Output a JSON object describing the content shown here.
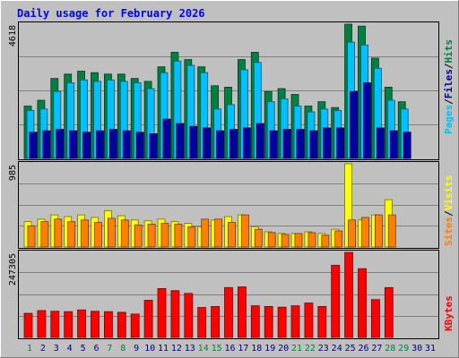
{
  "title": "Daily usage for February 2026",
  "colors": {
    "background": "#c0c0c0",
    "title": "#0000ff",
    "hits": "#008040",
    "files": "#00c0ff",
    "pages": "#0000a0",
    "visits": "#ffff00",
    "sites": "#ff8000",
    "kbytes": "#ff0000",
    "weekend_day": "#008040",
    "weekday": "#000080",
    "grid": "#808080"
  },
  "chart_data": [
    {
      "type": "bar",
      "panel": "hits-files-pages",
      "y_max_label": "4618",
      "ylim": [
        0,
        4618
      ],
      "grid": true,
      "legend": {
        "position": "right",
        "items": [
          {
            "label": "Pages",
            "color": "#00c0ff"
          },
          {
            "label": "/",
            "color": "#000000"
          },
          {
            "label": "Files",
            "color": "#0000a0"
          },
          {
            "label": "/",
            "color": "#000000"
          },
          {
            "label": "Hits",
            "color": "#008040"
          }
        ]
      },
      "categories": [
        "1",
        "2",
        "3",
        "4",
        "5",
        "6",
        "7",
        "8",
        "9",
        "10",
        "11",
        "12",
        "13",
        "14",
        "15",
        "16",
        "17",
        "18",
        "19",
        "20",
        "21",
        "22",
        "23",
        "24",
        "25",
        "26",
        "27",
        "28",
        "29",
        "30",
        "31"
      ],
      "series": [
        {
          "name": "Hits",
          "values": [
            1800,
            2000,
            2750,
            2900,
            3000,
            2950,
            2900,
            2900,
            2750,
            2650,
            3150,
            3650,
            3400,
            3150,
            2500,
            2450,
            3400,
            3650,
            2300,
            2400,
            2200,
            1800,
            1950,
            1750,
            4618,
            4550,
            3450,
            2450,
            1950,
            0,
            0
          ]
        },
        {
          "name": "Files",
          "values": [
            1650,
            1700,
            2300,
            2600,
            2700,
            2650,
            2700,
            2650,
            2600,
            2400,
            2950,
            3350,
            3200,
            2950,
            1700,
            1850,
            3050,
            3300,
            1950,
            2050,
            1800,
            1600,
            1700,
            1650,
            4000,
            3900,
            3100,
            2000,
            1700,
            0,
            0
          ]
        },
        {
          "name": "Pages",
          "values": [
            900,
            950,
            1000,
            950,
            900,
            950,
            1000,
            950,
            900,
            850,
            1350,
            1200,
            1100,
            1050,
            950,
            1000,
            1050,
            1200,
            950,
            1000,
            1000,
            950,
            1050,
            1050,
            2300,
            2600,
            1050,
            950,
            900,
            0,
            0
          ]
        }
      ]
    },
    {
      "type": "bar",
      "panel": "visits-sites",
      "y_max_label": "985",
      "ylim": [
        0,
        985
      ],
      "grid": true,
      "legend": {
        "position": "right",
        "items": [
          {
            "label": "Sites",
            "color": "#ff8000"
          },
          {
            "label": "/",
            "color": "#000000"
          },
          {
            "label": "Visits",
            "color": "#ffff00"
          }
        ]
      },
      "categories": [
        "1",
        "2",
        "3",
        "4",
        "5",
        "6",
        "7",
        "8",
        "9",
        "10",
        "11",
        "12",
        "13",
        "14",
        "15",
        "16",
        "17",
        "18",
        "19",
        "20",
        "21",
        "22",
        "23",
        "24",
        "25",
        "26",
        "27",
        "28",
        "29",
        "30",
        "31"
      ],
      "series": [
        {
          "name": "Visits",
          "values": [
            300,
            330,
            380,
            360,
            380,
            350,
            430,
            370,
            320,
            310,
            330,
            300,
            280,
            240,
            320,
            360,
            380,
            240,
            180,
            160,
            160,
            180,
            160,
            210,
            985,
            320,
            380,
            560,
            0,
            0,
            0
          ]
        },
        {
          "name": "Sites",
          "values": [
            250,
            300,
            330,
            300,
            320,
            290,
            340,
            320,
            260,
            270,
            280,
            270,
            240,
            330,
            330,
            290,
            380,
            210,
            170,
            150,
            160,
            170,
            140,
            190,
            320,
            350,
            380,
            380,
            0,
            0,
            0
          ]
        }
      ]
    },
    {
      "type": "bar",
      "panel": "kbytes",
      "y_max_label": "247305",
      "ylim": [
        0,
        247305
      ],
      "grid": true,
      "legend": {
        "position": "right",
        "items": [
          {
            "label": "KBytes",
            "color": "#ff0000"
          }
        ]
      },
      "categories": [
        "1",
        "2",
        "3",
        "4",
        "5",
        "6",
        "7",
        "8",
        "9",
        "10",
        "11",
        "12",
        "13",
        "14",
        "15",
        "16",
        "17",
        "18",
        "19",
        "20",
        "21",
        "22",
        "23",
        "24",
        "25",
        "26",
        "27",
        "28",
        "29",
        "30",
        "31"
      ],
      "series": [
        {
          "name": "KBytes",
          "values": [
            70000,
            78000,
            76000,
            75000,
            80000,
            76000,
            75000,
            73000,
            68000,
            108000,
            142000,
            136000,
            128000,
            87000,
            90000,
            145000,
            147000,
            92000,
            90000,
            88000,
            92000,
            100000,
            90000,
            210000,
            247305,
            200000,
            110000,
            145000,
            0,
            0,
            0
          ]
        }
      ]
    }
  ],
  "x_axis": {
    "days": [
      "1",
      "2",
      "3",
      "4",
      "5",
      "6",
      "7",
      "8",
      "9",
      "10",
      "11",
      "12",
      "13",
      "14",
      "15",
      "16",
      "17",
      "18",
      "19",
      "20",
      "21",
      "22",
      "23",
      "24",
      "25",
      "26",
      "27",
      "28",
      "29",
      "30",
      "31"
    ],
    "weekend_days": [
      "1",
      "7",
      "8",
      "14",
      "15",
      "21",
      "22",
      "28",
      "29"
    ]
  }
}
